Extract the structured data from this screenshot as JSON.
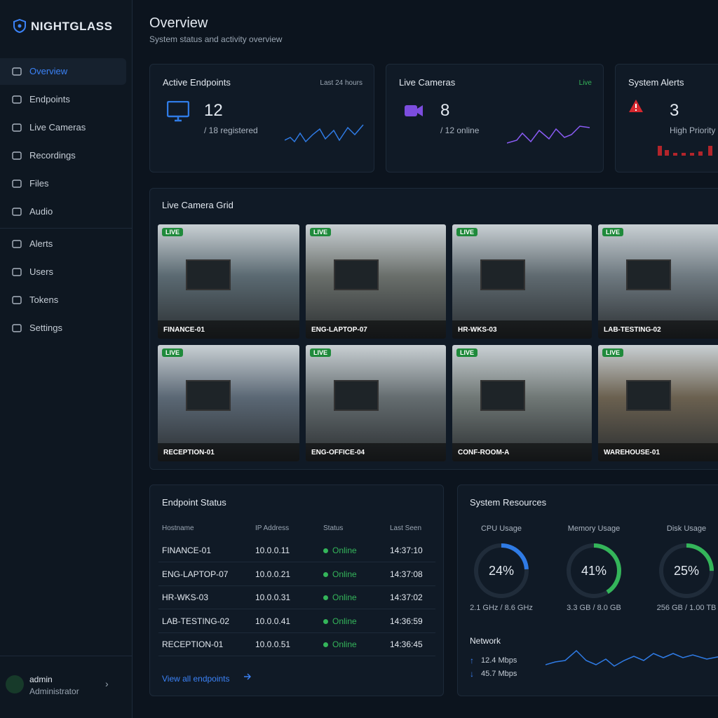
{
  "sidebar": {
    "brand": "NIGHTGLASS",
    "nav": [
      "Overview",
      "Endpoints",
      "Live Cameras",
      "Recordings",
      "Files",
      "Audio"
    ],
    "nav2": [
      "Alerts",
      "Users",
      "Tokens",
      "Settings"
    ],
    "user": {
      "name": "admin",
      "role": "Administrator"
    }
  },
  "header": {
    "title": "Overview",
    "subtitle": "System status and activity overview"
  },
  "stats": [
    {
      "title": "Active Endpoints",
      "badge": "Last 24 hours",
      "value": 12,
      "sub": "/ 18 registered"
    },
    {
      "title": "Live Cameras",
      "badge": "Live",
      "value": 8,
      "sub": "/ 12 online"
    },
    {
      "title": "System Alerts",
      "value": 3,
      "sub": "High Priority"
    }
  ],
  "camera_grid": {
    "title": "Live Camera Grid",
    "live_label": "LIVE",
    "cameras": [
      "FINANCE-01",
      "ENG-LAPTOP-07",
      "HR-WKS-03",
      "LAB-TESTING-02",
      "RECEPTION-01",
      "ENG-OFFICE-04",
      "CONF-ROOM-A",
      "WAREHOUSE-01"
    ]
  },
  "endpoint_status": {
    "title": "Endpoint Status",
    "columns": [
      "Hostname",
      "IP Address",
      "Status",
      "Last Seen"
    ],
    "rows": [
      [
        "FINANCE-01",
        "10.0.0.11",
        "Online",
        "14:37:10"
      ],
      [
        "ENG-LAPTOP-07",
        "10.0.0.21",
        "Online",
        "14:37:08"
      ],
      [
        "HR-WKS-03",
        "10.0.0.31",
        "Online",
        "14:37:02"
      ],
      [
        "LAB-TESTING-02",
        "10.0.0.41",
        "Online",
        "14:36:59"
      ],
      [
        "RECEPTION-01",
        "10.0.0.51",
        "Online",
        "14:36:45"
      ]
    ],
    "link": "View all endpoints"
  },
  "system_resources": {
    "title": "System Resources",
    "gauges": [
      {
        "label": "CPU Usage",
        "value": 24,
        "value_label": "24%",
        "detail": "2.1 GHz / 8.6 GHz",
        "color": "#2f7be5"
      },
      {
        "label": "Memory Usage",
        "value": 41,
        "value_label": "41%",
        "detail": "3.3 GB / 8.0 GB",
        "color": "#34b55a"
      },
      {
        "label": "Disk Usage",
        "value": 25,
        "value_label": "25%",
        "detail": "256 GB / 1.00 TB",
        "color": "#34b55a"
      }
    ],
    "network": {
      "title": "Network",
      "up": "12.4 Mbps",
      "down": "45.7 Mbps"
    }
  }
}
